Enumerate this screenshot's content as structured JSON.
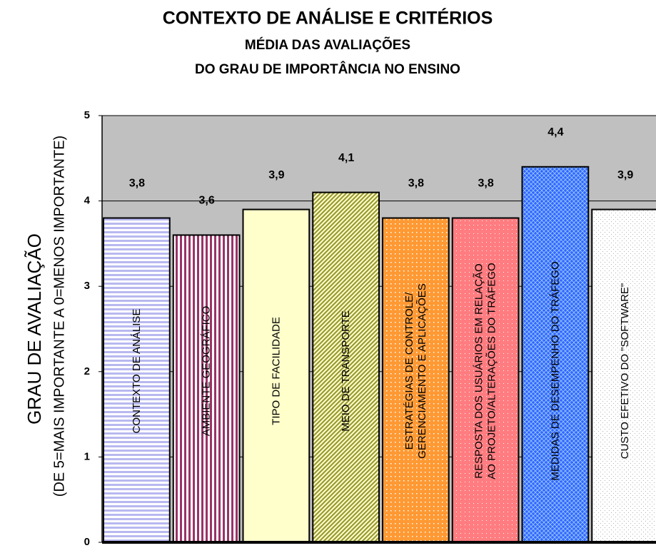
{
  "chart_data": {
    "type": "bar",
    "title": "CONTEXTO DE ANÁLISE E CRITÉRIOS",
    "subtitle": [
      "MÉDIA DAS AVALIAÇÕES",
      "DO GRAU DE IMPORTÂNCIA NO ENSINO"
    ],
    "y_label": [
      "GRAU DE AVALIAÇÃO",
      "(DE 5=MAIS IMPORTANTE A 0=MENOS IMPORTANTE)"
    ],
    "categories": [
      [
        "CONTEXTO DE ANÁLISE"
      ],
      [
        "AMBIENTE GEOGRÁFICO"
      ],
      [
        "TIPO DE FACILIDADE"
      ],
      [
        "MEIO DE TRANSPORTE"
      ],
      [
        "ESTRATÉGIAS DE CONTROLE/",
        "GERENCIAMENTO E APLICAÇÕES"
      ],
      [
        "RESPOSTA DOS USUÁRIOS EM RELAÇÃO",
        "AO PROJETO/ALTERAÇÕES DO TRÁFEGO"
      ],
      [
        "MEDIDAS DE DESEMPENHO DO TRÁFEGO"
      ],
      [
        "CUSTO EFETIVO DO \"SOFTWARE\""
      ]
    ],
    "values": [
      3.8,
      3.6,
      3.9,
      4.1,
      3.8,
      3.8,
      4.4,
      3.9
    ],
    "value_labels": [
      "3,8",
      "3,6",
      "3,9",
      "4,1",
      "3,8",
      "3,8",
      "4,4",
      "3,9"
    ],
    "colors": [
      "#b8b8f0",
      "#993366",
      "#ffffcc",
      "#999933",
      "#ff9933",
      "#ff7c80",
      "#3366ff",
      "#b0b0b0"
    ],
    "ylim": [
      0,
      5
    ],
    "yticks": [
      0,
      1,
      2,
      3,
      4,
      5
    ],
    "grid": true,
    "background": "#c0c0c0"
  }
}
